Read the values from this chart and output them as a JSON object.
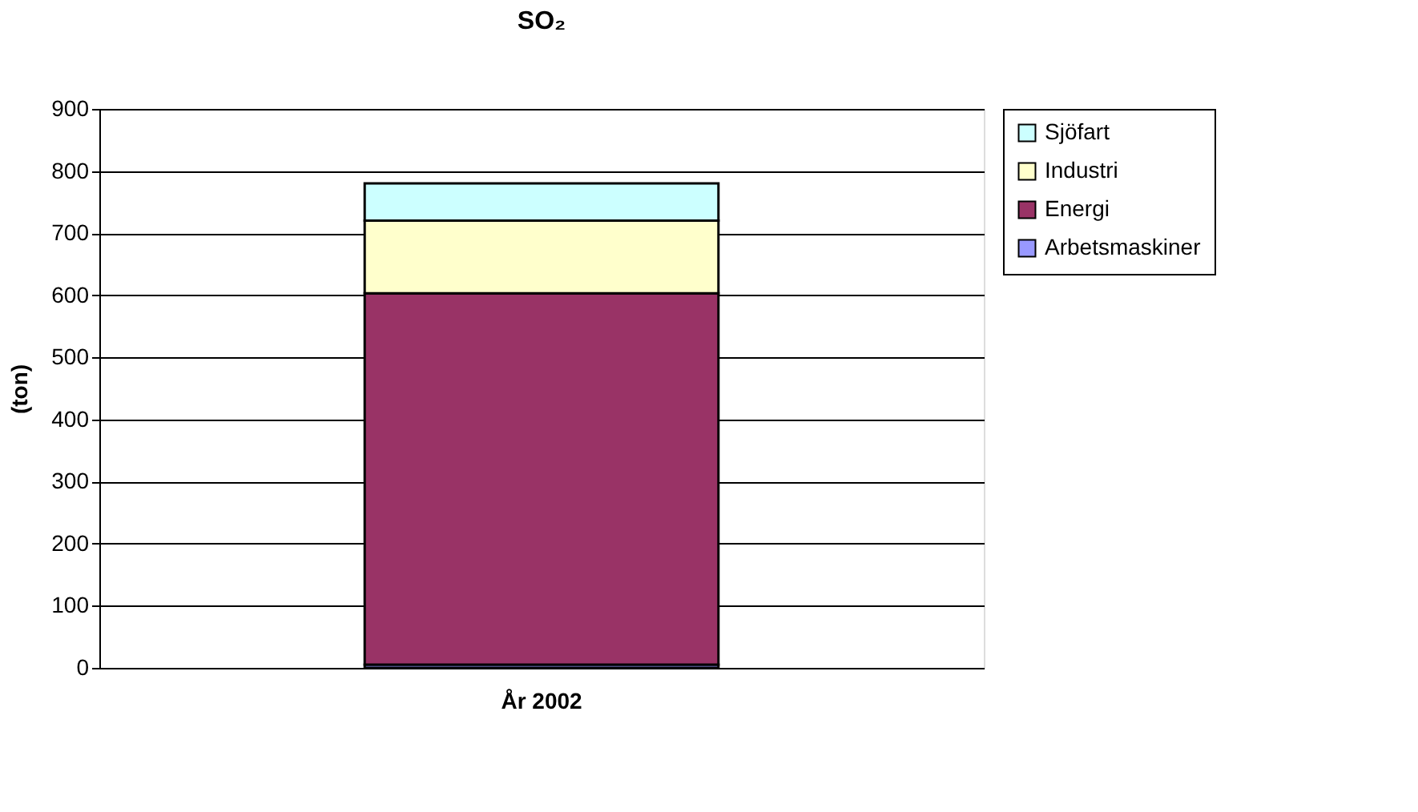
{
  "chart_data": {
    "type": "bar",
    "title": "SO₂",
    "ylabel": "(ton)",
    "categories": [
      "År 2002"
    ],
    "stacked": true,
    "series": [
      {
        "name": "Arbetsmaskiner",
        "color": "#9999ff",
        "values": [
          5
        ]
      },
      {
        "name": "Energi",
        "color": "#993366",
        "values": [
          598
        ]
      },
      {
        "name": "Industri",
        "color": "#ffffcc",
        "values": [
          117
        ]
      },
      {
        "name": "Sjöfart",
        "color": "#ccffff",
        "values": [
          60
        ]
      }
    ],
    "ylim": [
      0,
      900
    ],
    "yticks": [
      0,
      100,
      200,
      300,
      400,
      500,
      600,
      700,
      800,
      900
    ],
    "grid": "y",
    "legend": "right"
  }
}
